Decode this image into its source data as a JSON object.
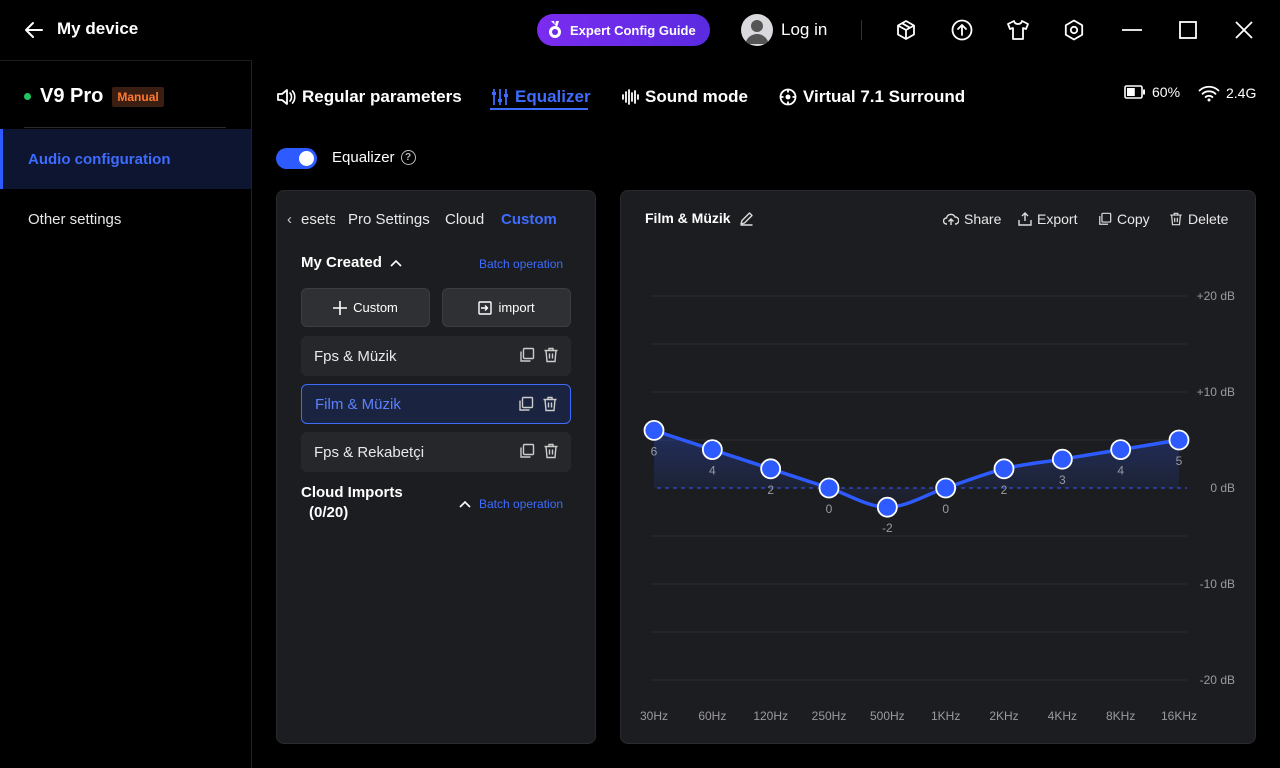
{
  "titlebar": {
    "title": "My device",
    "guide_label": "Expert Config Guide",
    "login_label": "Log in"
  },
  "sidebar": {
    "device_name": "V9 Pro",
    "mode_badge": "Manual",
    "items": [
      {
        "label": "Audio configuration",
        "active": true
      },
      {
        "label": "Other settings",
        "active": false
      }
    ]
  },
  "tabs": [
    {
      "label": "Regular parameters",
      "icon": "speaker-icon"
    },
    {
      "label": "Equalizer",
      "icon": "sliders-icon",
      "active": true
    },
    {
      "label": "Sound mode",
      "icon": "waveform-icon"
    },
    {
      "label": "Virtual 7.1 Surround",
      "icon": "surround-icon"
    }
  ],
  "status": {
    "battery": "60%",
    "battery_level": 0.6,
    "wifi": "2.4G"
  },
  "equalizer_toggle": {
    "label": "Equalizer",
    "enabled": true
  },
  "left_panel": {
    "tabs": [
      "esets",
      "Pro Settings",
      "Cloud",
      "Custom"
    ],
    "active_tab": "Custom",
    "my_created_title": "My Created",
    "batch_label": "Batch operation",
    "add_button": "Custom",
    "import_button": "import",
    "presets": [
      {
        "name": "Fps & Müzik",
        "active": false
      },
      {
        "name": "Film & Müzik",
        "active": true
      },
      {
        "name": "Fps & Rekabetçi",
        "active": false
      }
    ],
    "cloud_title": "Cloud Imports",
    "cloud_count": "(0/20)",
    "cloud_batch_label": "Batch operation"
  },
  "right_panel": {
    "preset_title": "Film & Müzik",
    "actions": [
      "Share",
      "Export",
      "Copy",
      "Delete"
    ]
  },
  "chart_data": {
    "type": "line",
    "x": [
      "30Hz",
      "60Hz",
      "120Hz",
      "250Hz",
      "500Hz",
      "1KHz",
      "2KHz",
      "4KHz",
      "8KHz",
      "16KHz"
    ],
    "values": [
      6,
      4,
      2,
      0,
      -2,
      0,
      2,
      3,
      4,
      5
    ],
    "y_ticks": [
      "+20 dB",
      "+10 dB",
      "0 dB",
      "-10 dB",
      "-20 dB"
    ],
    "ylim": [
      -20,
      20
    ],
    "grid": true,
    "line_color": "#2e5bff"
  }
}
